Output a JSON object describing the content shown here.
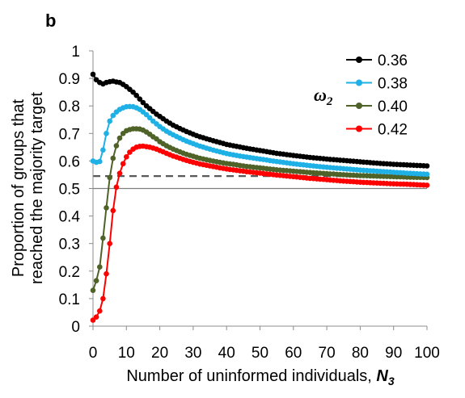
{
  "panel_label": "b",
  "chart_data": {
    "type": "line",
    "xlabel": "Number of uninformed individuals, ",
    "xlabel_symbol": "N",
    "xlabel_subscript": "3",
    "ylabel_line1": "Proportion of groups that",
    "ylabel_line2": "reached the majority target",
    "legend_title_symbol": "ω",
    "legend_title_subscript": "2",
    "xlim": [
      0,
      100
    ],
    "ylim": [
      0,
      1
    ],
    "xticks": [
      "0",
      "10",
      "20",
      "30",
      "40",
      "50",
      "60",
      "70",
      "80",
      "90",
      "100"
    ],
    "yticks": [
      "0",
      "0.1",
      "0.2",
      "0.3",
      "0.4",
      "0.5",
      "0.6",
      "0.7",
      "0.8",
      "0.9",
      "1"
    ],
    "reference_lines": [
      {
        "y": 0.5,
        "style": "solid",
        "color": "#7f7f7f"
      },
      {
        "y": 0.545,
        "style": "dashed",
        "color": "#595959"
      }
    ],
    "series": [
      {
        "name": "0.36",
        "color": "#000000",
        "points": [
          [
            0,
            0.915
          ],
          [
            1,
            0.895
          ],
          [
            2,
            0.885
          ],
          [
            3,
            0.88
          ],
          [
            4,
            0.885
          ],
          [
            5,
            0.888
          ],
          [
            6,
            0.89
          ],
          [
            7,
            0.887
          ],
          [
            8,
            0.885
          ],
          [
            9,
            0.878
          ],
          [
            10,
            0.87
          ],
          [
            11,
            0.86
          ],
          [
            12,
            0.85
          ],
          [
            13,
            0.838
          ],
          [
            14,
            0.825
          ],
          [
            15,
            0.812
          ],
          [
            16,
            0.8
          ],
          [
            17,
            0.79
          ],
          [
            18,
            0.78
          ],
          [
            19,
            0.77
          ],
          [
            20,
            0.762
          ],
          [
            22,
            0.745
          ],
          [
            24,
            0.73
          ],
          [
            26,
            0.718
          ],
          [
            28,
            0.707
          ],
          [
            30,
            0.697
          ],
          [
            32,
            0.688
          ],
          [
            35,
            0.677
          ],
          [
            38,
            0.667
          ],
          [
            40,
            0.66
          ],
          [
            43,
            0.653
          ],
          [
            46,
            0.646
          ],
          [
            50,
            0.638
          ],
          [
            55,
            0.628
          ],
          [
            60,
            0.62
          ],
          [
            65,
            0.613
          ],
          [
            70,
            0.607
          ],
          [
            75,
            0.602
          ],
          [
            80,
            0.597
          ],
          [
            85,
            0.592
          ],
          [
            90,
            0.588
          ],
          [
            95,
            0.585
          ],
          [
            100,
            0.582
          ]
        ]
      },
      {
        "name": "0.38",
        "color": "#1fb1e6",
        "points": [
          [
            0,
            0.6
          ],
          [
            1,
            0.595
          ],
          [
            2,
            0.598
          ],
          [
            3,
            0.64
          ],
          [
            4,
            0.7
          ],
          [
            5,
            0.745
          ],
          [
            6,
            0.765
          ],
          [
            7,
            0.778
          ],
          [
            8,
            0.787
          ],
          [
            9,
            0.793
          ],
          [
            10,
            0.797
          ],
          [
            11,
            0.798
          ],
          [
            12,
            0.797
          ],
          [
            13,
            0.793
          ],
          [
            14,
            0.787
          ],
          [
            15,
            0.778
          ],
          [
            16,
            0.768
          ],
          [
            17,
            0.757
          ],
          [
            18,
            0.745
          ],
          [
            19,
            0.735
          ],
          [
            20,
            0.725
          ],
          [
            22,
            0.708
          ],
          [
            24,
            0.695
          ],
          [
            26,
            0.683
          ],
          [
            28,
            0.672
          ],
          [
            30,
            0.663
          ],
          [
            32,
            0.654
          ],
          [
            35,
            0.643
          ],
          [
            38,
            0.633
          ],
          [
            40,
            0.627
          ],
          [
            43,
            0.62
          ],
          [
            46,
            0.614
          ],
          [
            50,
            0.607
          ],
          [
            55,
            0.598
          ],
          [
            60,
            0.59
          ],
          [
            65,
            0.583
          ],
          [
            70,
            0.577
          ],
          [
            75,
            0.572
          ],
          [
            80,
            0.567
          ],
          [
            85,
            0.563
          ],
          [
            90,
            0.559
          ],
          [
            95,
            0.555
          ],
          [
            100,
            0.552
          ]
        ]
      },
      {
        "name": "0.40",
        "color": "#4f6228",
        "points": [
          [
            0,
            0.13
          ],
          [
            1,
            0.165
          ],
          [
            2,
            0.215
          ],
          [
            3,
            0.32
          ],
          [
            4,
            0.43
          ],
          [
            5,
            0.54
          ],
          [
            6,
            0.61
          ],
          [
            7,
            0.655
          ],
          [
            8,
            0.683
          ],
          [
            9,
            0.7
          ],
          [
            10,
            0.71
          ],
          [
            11,
            0.714
          ],
          [
            12,
            0.717
          ],
          [
            13,
            0.717
          ],
          [
            14,
            0.716
          ],
          [
            15,
            0.712
          ],
          [
            16,
            0.705
          ],
          [
            17,
            0.697
          ],
          [
            18,
            0.688
          ],
          [
            19,
            0.68
          ],
          [
            20,
            0.67
          ],
          [
            22,
            0.655
          ],
          [
            24,
            0.643
          ],
          [
            26,
            0.633
          ],
          [
            28,
            0.624
          ],
          [
            30,
            0.617
          ],
          [
            32,
            0.61
          ],
          [
            35,
            0.602
          ],
          [
            38,
            0.595
          ],
          [
            40,
            0.591
          ],
          [
            43,
            0.586
          ],
          [
            46,
            0.58
          ],
          [
            50,
            0.575
          ],
          [
            55,
            0.568
          ],
          [
            60,
            0.563
          ],
          [
            65,
            0.558
          ],
          [
            70,
            0.554
          ],
          [
            75,
            0.55
          ],
          [
            80,
            0.547
          ],
          [
            85,
            0.545
          ],
          [
            90,
            0.543
          ],
          [
            95,
            0.541
          ],
          [
            100,
            0.54
          ]
        ]
      },
      {
        "name": "0.42",
        "color": "#ff0000",
        "points": [
          [
            0,
            0.022
          ],
          [
            1,
            0.033
          ],
          [
            2,
            0.055
          ],
          [
            3,
            0.1
          ],
          [
            4,
            0.19
          ],
          [
            5,
            0.3
          ],
          [
            6,
            0.42
          ],
          [
            7,
            0.505
          ],
          [
            8,
            0.555
          ],
          [
            9,
            0.59
          ],
          [
            10,
            0.615
          ],
          [
            11,
            0.632
          ],
          [
            12,
            0.643
          ],
          [
            13,
            0.65
          ],
          [
            14,
            0.653
          ],
          [
            15,
            0.654
          ],
          [
            16,
            0.652
          ],
          [
            17,
            0.65
          ],
          [
            18,
            0.647
          ],
          [
            19,
            0.643
          ],
          [
            20,
            0.638
          ],
          [
            22,
            0.628
          ],
          [
            24,
            0.618
          ],
          [
            26,
            0.61
          ],
          [
            28,
            0.602
          ],
          [
            30,
            0.595
          ],
          [
            32,
            0.589
          ],
          [
            35,
            0.582
          ],
          [
            38,
            0.575
          ],
          [
            40,
            0.571
          ],
          [
            43,
            0.566
          ],
          [
            46,
            0.561
          ],
          [
            50,
            0.556
          ],
          [
            55,
            0.549
          ],
          [
            60,
            0.543
          ],
          [
            65,
            0.537
          ],
          [
            70,
            0.532
          ],
          [
            75,
            0.527
          ],
          [
            80,
            0.523
          ],
          [
            85,
            0.52
          ],
          [
            90,
            0.517
          ],
          [
            95,
            0.515
          ],
          [
            100,
            0.512
          ]
        ]
      }
    ]
  }
}
